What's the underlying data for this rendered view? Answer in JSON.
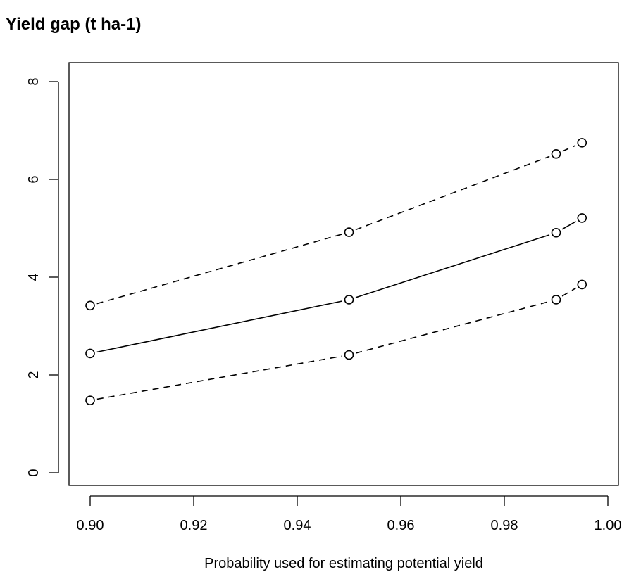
{
  "chart_data": {
    "type": "line",
    "title": "Yield gap (t ha-1)",
    "xlabel": "Probability used for estimating potential yield",
    "ylabel": "",
    "xlim": [
      0.9,
      1.0
    ],
    "ylim": [
      0,
      8
    ],
    "xticks": [
      0.9,
      0.92,
      0.94,
      0.96,
      0.98,
      1.0
    ],
    "xtick_labels": [
      "0.90",
      "0.92",
      "0.94",
      "0.96",
      "0.98",
      "1.00"
    ],
    "yticks": [
      0,
      2,
      4,
      6,
      8
    ],
    "ytick_labels": [
      "0",
      "2",
      "4",
      "6",
      "8"
    ],
    "grid": false,
    "x": [
      0.9,
      0.95,
      0.99,
      0.995
    ],
    "series": [
      {
        "values": [
          3.42,
          4.92,
          6.52,
          6.75
        ],
        "line_style": "dashed",
        "marker": "open-circle"
      },
      {
        "values": [
          2.44,
          3.54,
          4.91,
          5.21
        ],
        "line_style": "solid",
        "marker": "open-circle"
      },
      {
        "values": [
          1.48,
          2.41,
          3.54,
          3.85
        ],
        "line_style": "dashed",
        "marker": "open-circle"
      }
    ]
  }
}
